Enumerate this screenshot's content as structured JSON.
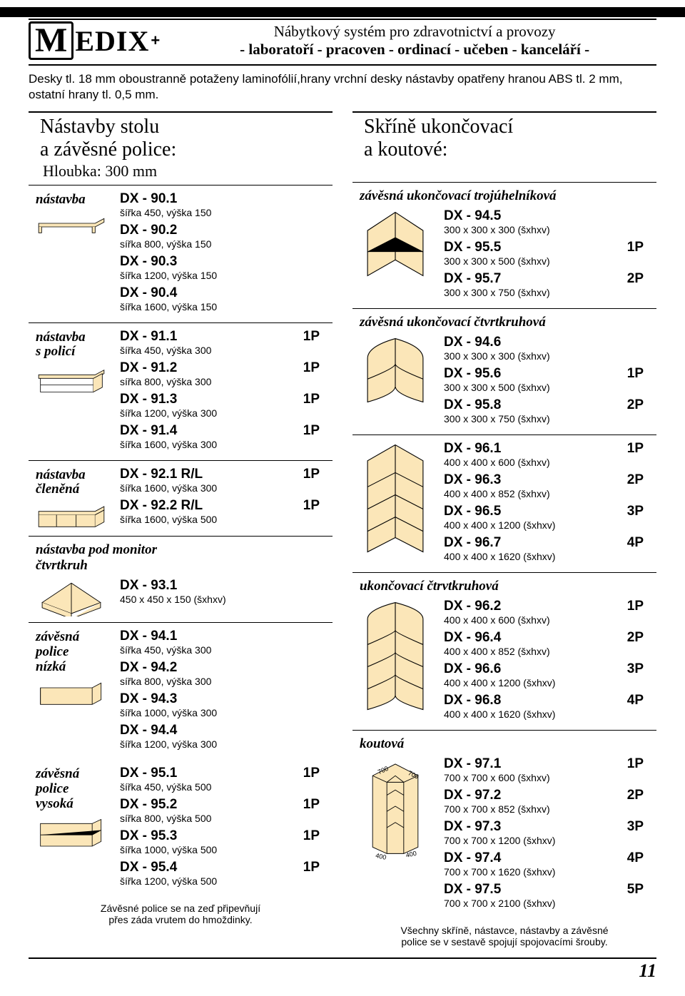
{
  "header": {
    "brand_prefix": "M",
    "brand_rest": "EDIX",
    "brand_plus": "+",
    "tagline1": "Nábytkový systém pro zdravotnictví a provozy",
    "tagline2": "- laboratoří - pracoven - ordinací - učeben - kanceláří -"
  },
  "intro": "Desky tl. 18 mm oboustranně potaženy laminofólií,hrany vrchní desky nástavby opatřeny hranou ABS tl. 2 mm, ostatní hrany tl. 0,5 mm.",
  "left": {
    "title": "Nástavby stolu\na závěsné police:",
    "sub": "Hloubka:   300 mm",
    "sections": [
      {
        "label": "nástavba",
        "icon": "shelf-simple",
        "items": [
          {
            "code": "DX - 90.1",
            "dim": "šířka 450, výška 150"
          },
          {
            "code": "DX - 90.2",
            "dim": "sířka 800, výška 150"
          },
          {
            "code": "DX - 90.3",
            "dim": "šířka 1200, výška 150"
          },
          {
            "code": "DX - 90.4",
            "dim": "šířka 1600, výška 150"
          }
        ]
      },
      {
        "label": "nástavba\ns policí",
        "icon": "shelf-double",
        "items": [
          {
            "code": "DX - 91.1",
            "badge": "1P",
            "dim": "šířka 450, výška 300"
          },
          {
            "code": "DX - 91.2",
            "badge": "1P",
            "dim": "sířka 800, výška 300"
          },
          {
            "code": "DX - 91.3",
            "badge": "1P",
            "dim": "šířka 1200, výška 300"
          },
          {
            "code": "DX - 91.4",
            "badge": "1P",
            "dim": "šířka 1600, výška 300"
          }
        ]
      },
      {
        "label": "nástavba\nčleněná",
        "icon": "shelf-segmented",
        "items": [
          {
            "code": "DX - 92.1 R/L",
            "badge": "1P",
            "dim": "šířka 1600, výška 300"
          },
          {
            "code": "DX - 92.2 R/L",
            "badge": "1P",
            "dim": "šířka 1600, výška 500"
          }
        ]
      },
      {
        "fullLabel": "nástavba pod monitor\nčtvrtkruh",
        "icon": "quarter-top",
        "items": [
          {
            "code": "DX - 93.1",
            "dim": "450 x 450 x 150 (šxhxv)"
          }
        ]
      },
      {
        "label": "závěsná\npolice\nnízká",
        "icon": "shelf-open-low",
        "items": [
          {
            "code": "DX - 94.1",
            "dim": "šířka 450, výška 300"
          },
          {
            "code": "DX - 94.2",
            "dim": "sířka 800, výška 300"
          },
          {
            "code": "DX - 94.3",
            "dim": "šířka 1000, výška 300"
          },
          {
            "code": "DX - 94.4",
            "dim": "šířka 1200, výška 300"
          }
        ]
      },
      {
        "label": "závěsná\npolice\nvysoká",
        "icon": "shelf-open-high",
        "noborder": true,
        "items": [
          {
            "code": "DX - 95.1",
            "badge": "1P",
            "dim": "šířka 450, výška 500"
          },
          {
            "code": "DX - 95.2",
            "badge": "1P",
            "dim": "sířka 800, výška 500"
          },
          {
            "code": "DX - 95.3",
            "badge": "1P",
            "dim": "šířka 1000, výška 500"
          },
          {
            "code": "DX - 95.4",
            "badge": "1P",
            "dim": "šířka 1200, výška 500"
          }
        ]
      }
    ],
    "footnote": "Závěsné police se na zeď připevňují\npřes záda vrutem do hmoždinky."
  },
  "right": {
    "title": "Skříně ukončovací\na koutové:",
    "sections": [
      {
        "fullLabel": "závěsná ukončovací trojúhelníková",
        "icon": "triangle-shelf",
        "items": [
          {
            "code": "DX - 94.5",
            "dim": "300 x 300 x 300 (šxhxv)"
          },
          {
            "code": "DX - 95.5",
            "badge": "1P",
            "dim": "300 x 300 x 500 (šxhxv)"
          },
          {
            "code": "DX - 95.7",
            "badge": "2P",
            "dim": "300 x 300 x 750 (šxhxv)"
          }
        ]
      },
      {
        "fullLabel": "závěsná ukončovací čtvrtkruhová",
        "icon": "quarter-shelf-small",
        "items": [
          {
            "code": "DX - 94.6",
            "dim": "300 x 300 x 300 (šxhxv)"
          },
          {
            "code": "DX - 95.6",
            "badge": "1P",
            "dim": "300 x 300 x 500 (šxhxv)"
          },
          {
            "code": "DX - 95.8",
            "badge": "2P",
            "dim": "300 x 300 x 750 (šxhxv)"
          }
        ]
      },
      {
        "fullLabel": "",
        "icon": "triangle-shelf-tall",
        "items": [
          {
            "code": "DX - 96.1",
            "badge": "1P",
            "dim": "400 x 400 x  600 (šxhxv)"
          },
          {
            "code": "DX - 96.3",
            "badge": "2P",
            "dim": "400 x 400 x  852 (šxhxv)"
          },
          {
            "code": "DX - 96.5",
            "badge": "3P",
            "dim": "400 x 400 x 1200 (šxhxv)"
          },
          {
            "code": "DX - 96.7",
            "badge": "4P",
            "dim": "400 x 400 x 1620 (šxhxv)"
          }
        ]
      },
      {
        "fullLabel": "ukončovací čtrvtkruhová",
        "icon": "quarter-shelf-tall",
        "items": [
          {
            "code": "DX - 96.2",
            "badge": "1P",
            "dim": "400 x 400 x  600 (šxhxv)"
          },
          {
            "code": "DX - 96.4",
            "badge": "2P",
            "dim": "400 x 400 x  852 (šxhxv)"
          },
          {
            "code": "DX - 96.6",
            "badge": "3P",
            "dim": "400 x 400 x 1200 (šxhxv)"
          },
          {
            "code": "DX - 96.8",
            "badge": "4P",
            "dim": "400 x 400 x 1620 (šxhxv)"
          }
        ]
      },
      {
        "fullLabel": "koutová",
        "icon": "corner-cabinet",
        "items": [
          {
            "code": "DX - 97.1",
            "badge": "1P",
            "dim": "700 x 700 x  600 (šxhxv)"
          },
          {
            "code": "DX - 97.2",
            "badge": "2P",
            "dim": "700 x 700 x  852 (šxhxv)"
          },
          {
            "code": "DX - 97.3",
            "badge": "3P",
            "dim": "700 x 700 x  1200 (šxhxv)"
          },
          {
            "code": "DX - 97.4",
            "badge": "4P",
            "dim": "700 x 700 x  1620 (šxhxv)"
          },
          {
            "code": "DX - 97.5",
            "badge": "5P",
            "dim": "700 x 700 x  2100 (šxhxv)"
          }
        ]
      }
    ],
    "footnote": "Všechny skříně, nástavce, nástavby a závěsné\npolice se v sestavě spojují spojovacími šrouby."
  },
  "page_number": "11",
  "colors": {
    "fill": "#fbe6b8",
    "stroke": "#000000"
  }
}
